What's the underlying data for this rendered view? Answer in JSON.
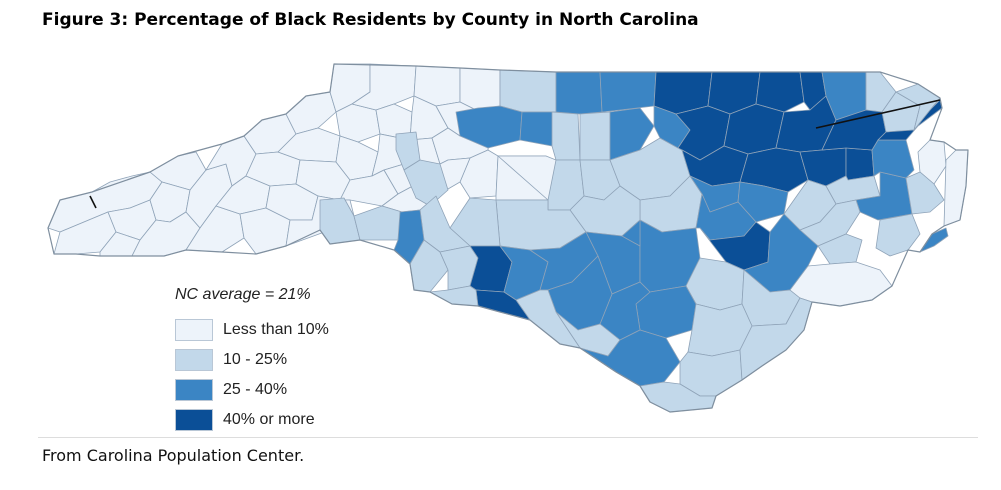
{
  "figure": {
    "title": "Figure 3: Percentage of Black Residents by County in North Carolina",
    "source": "From Carolina Population Center."
  },
  "legend": {
    "title": "NC average = 21%",
    "items": [
      {
        "label": "Less than 10%",
        "color": "#edf3fa"
      },
      {
        "label": "10 - 25%",
        "color": "#c2d8ea"
      },
      {
        "label": "25 - 40%",
        "color": "#3b85c4"
      },
      {
        "label": "40% or more",
        "color": "#0b4f97"
      }
    ]
  },
  "colors": {
    "county_border": "#8fa3b8",
    "state_outline": "#7f8f9f",
    "background": "#ffffff"
  }
}
